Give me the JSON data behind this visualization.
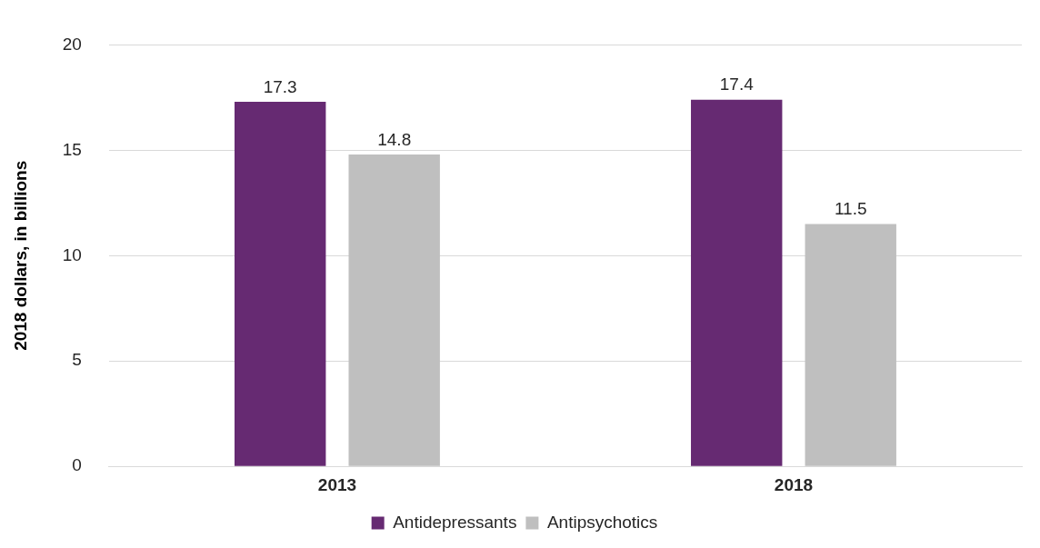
{
  "chart_data": {
    "type": "bar",
    "ylabel": "2018 dollars, in billions",
    "categories": [
      "2013",
      "2018"
    ],
    "series": [
      {
        "name": "Antidepressants",
        "color": "#662a72",
        "values": [
          17.3,
          17.4
        ]
      },
      {
        "name": "Antipsychotics",
        "color": "#bfbfbf",
        "values": [
          14.8,
          11.5
        ]
      }
    ],
    "ylim": [
      0,
      20
    ],
    "yticks": [
      0,
      5,
      10,
      15,
      20
    ],
    "grid": "y",
    "legend": "bottom",
    "data_labels": true
  }
}
